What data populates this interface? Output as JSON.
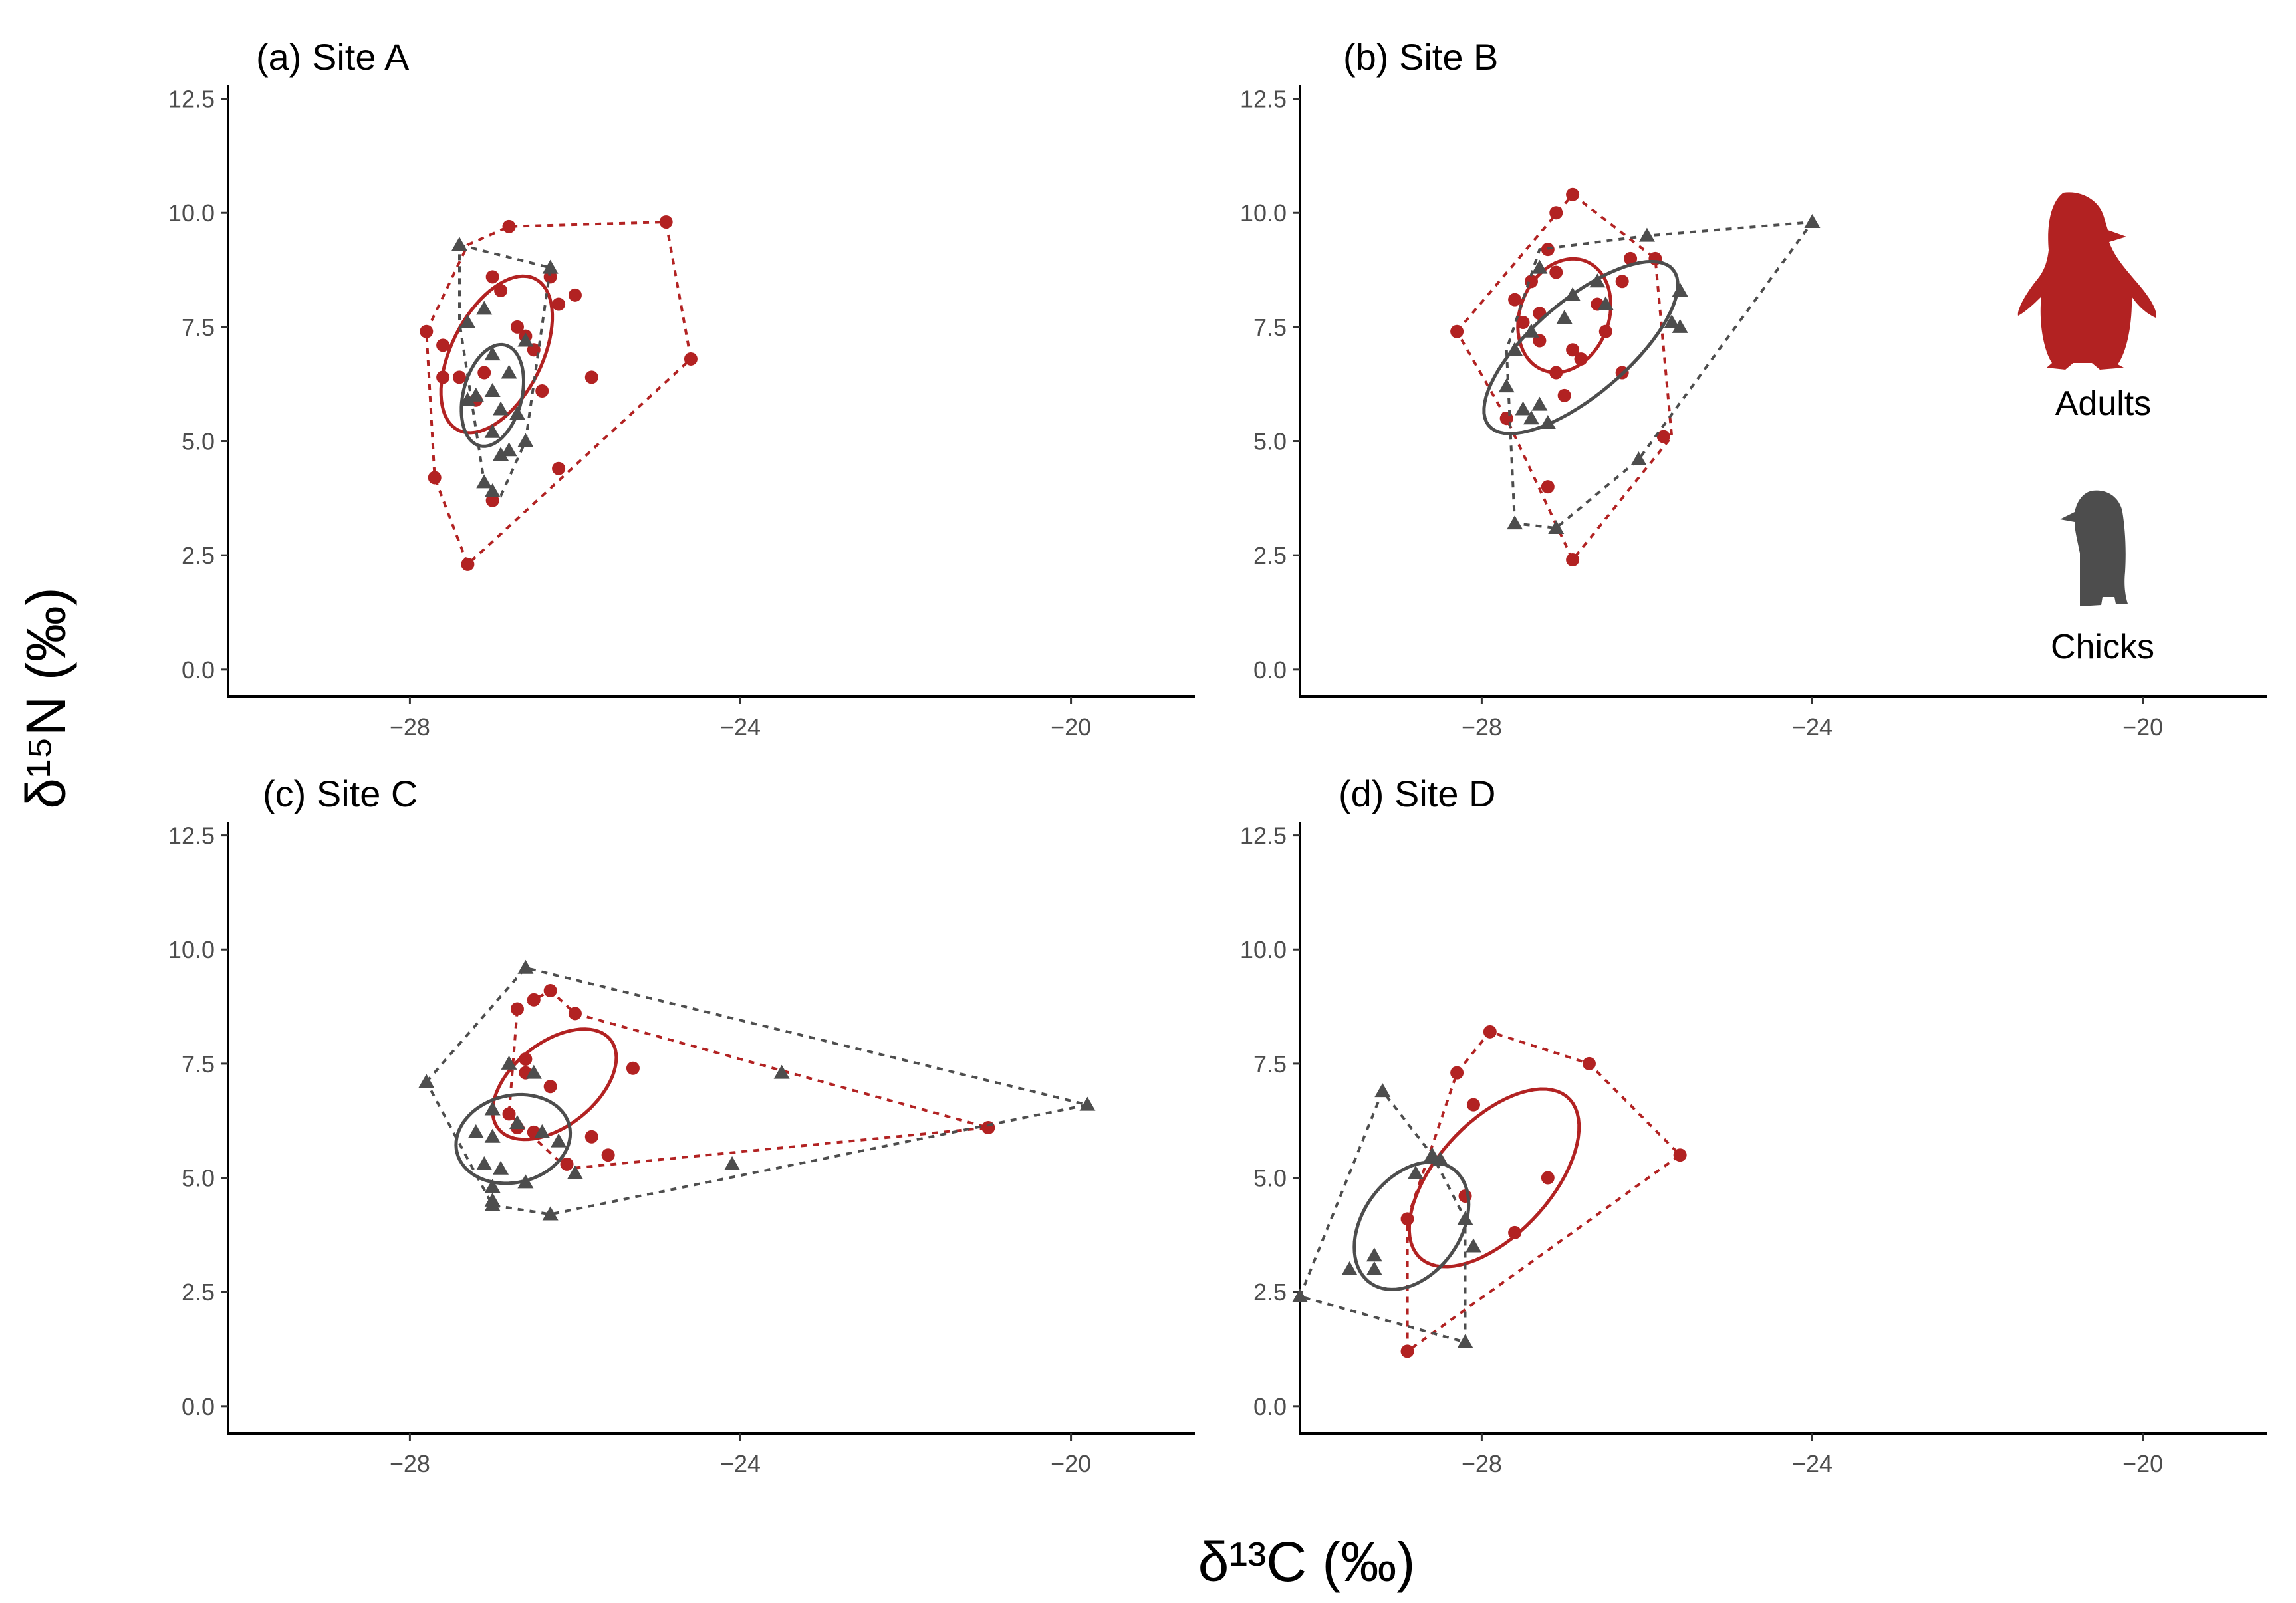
{
  "figure": {
    "x_axis_title": "δ¹³C (‰)",
    "y_axis_title": "δ¹⁵N (‰)"
  },
  "colors": {
    "adults": "#b22222",
    "chicks": "#4d4d4d",
    "axis": "#000000"
  },
  "legend": [
    {
      "label": "Adults",
      "series": "adults",
      "icon": "adult-penguin-icon"
    },
    {
      "label": "Chicks",
      "series": "chicks",
      "icon": "chick-penguin-icon"
    }
  ],
  "chart_data": [
    {
      "id": "a",
      "type": "scatter",
      "title": "(a) Site A",
      "xlim": [
        -30.2,
        -18.5
      ],
      "ylim": [
        -0.6,
        12.8
      ],
      "xticks": [
        -28,
        -24,
        -20
      ],
      "xtick_labels": [
        "−28",
        "−24",
        "−20"
      ],
      "yticks": [
        0,
        2.5,
        5,
        7.5,
        10,
        12.5
      ],
      "ytick_labels": [
        "0.0",
        "2.5",
        "5.0",
        "7.5",
        "10.0",
        "12.5"
      ],
      "series": [
        {
          "name": "Adults",
          "key": "adults",
          "marker": "circle",
          "points": [
            [
              -27.8,
              7.4
            ],
            [
              -27.6,
              7.1
            ],
            [
              -27.6,
              6.4
            ],
            [
              -27.4,
              6.4
            ],
            [
              -27.2,
              5.9
            ],
            [
              -27.1,
              6.5
            ],
            [
              -27.0,
              8.6
            ],
            [
              -26.9,
              8.3
            ],
            [
              -26.7,
              7.5
            ],
            [
              -26.6,
              7.3
            ],
            [
              -26.5,
              7.0
            ],
            [
              -26.4,
              6.1
            ],
            [
              -26.3,
              8.6
            ],
            [
              -26.2,
              8.0
            ],
            [
              -26.0,
              8.2
            ],
            [
              -25.8,
              6.4
            ],
            [
              -26.2,
              4.4
            ],
            [
              -27.7,
              4.2
            ],
            [
              -27.0,
              3.7
            ],
            [
              -26.8,
              9.7
            ],
            [
              -24.9,
              9.8
            ],
            [
              -24.6,
              6.8
            ],
            [
              -27.3,
              2.3
            ]
          ],
          "hull": [
            [
              -27.8,
              7.4
            ],
            [
              -27.3,
              9.3
            ],
            [
              -26.8,
              9.7
            ],
            [
              -24.9,
              9.8
            ],
            [
              -24.6,
              6.8
            ],
            [
              -27.3,
              2.3
            ],
            [
              -27.7,
              4.2
            ]
          ],
          "ellipse": {
            "cx": -26.95,
            "cy": 6.9,
            "rx": 1.75,
            "ry": 0.58,
            "angle": 78
          }
        },
        {
          "name": "Chicks",
          "key": "chicks",
          "marker": "triangle",
          "points": [
            [
              -27.4,
              9.3
            ],
            [
              -26.3,
              8.8
            ],
            [
              -27.3,
              7.6
            ],
            [
              -27.1,
              7.9
            ],
            [
              -27.0,
              6.9
            ],
            [
              -26.8,
              6.5
            ],
            [
              -26.6,
              7.2
            ],
            [
              -27.0,
              6.1
            ],
            [
              -27.2,
              6.0
            ],
            [
              -27.3,
              5.9
            ],
            [
              -26.9,
              5.7
            ],
            [
              -26.7,
              5.6
            ],
            [
              -27.0,
              5.2
            ],
            [
              -26.8,
              4.8
            ],
            [
              -27.1,
              4.1
            ],
            [
              -27.0,
              3.9
            ],
            [
              -26.9,
              4.7
            ],
            [
              -26.6,
              5.0
            ]
          ],
          "hull": [
            [
              -27.4,
              9.3
            ],
            [
              -26.3,
              8.8
            ],
            [
              -26.6,
              5.0
            ],
            [
              -26.9,
              3.8
            ],
            [
              -27.1,
              4.1
            ],
            [
              -27.4,
              7.6
            ]
          ],
          "ellipse": {
            "cx": -27.0,
            "cy": 6.0,
            "rx": 1.12,
            "ry": 0.36,
            "angle": 84
          }
        }
      ]
    },
    {
      "id": "b",
      "type": "scatter",
      "title": "(b) Site B",
      "xlim": [
        -30.2,
        -18.5
      ],
      "ylim": [
        -0.6,
        12.8
      ],
      "xticks": [
        -28,
        -24,
        -20
      ],
      "xtick_labels": [
        "−28",
        "−24",
        "−20"
      ],
      "yticks": [
        0,
        2.5,
        5,
        7.5,
        10,
        12.5
      ],
      "ytick_labels": [
        "0.0",
        "2.5",
        "5.0",
        "7.5",
        "10.0",
        "12.5"
      ],
      "series": [
        {
          "name": "Adults",
          "key": "adults",
          "marker": "circle",
          "points": [
            [
              -28.3,
              7.4
            ],
            [
              -27.6,
              8.1
            ],
            [
              -27.4,
              8.5
            ],
            [
              -27.2,
              9.2
            ],
            [
              -27.3,
              7.8
            ],
            [
              -27.1,
              8.7
            ],
            [
              -26.9,
              10.4
            ],
            [
              -27.1,
              10.0
            ],
            [
              -27.5,
              7.6
            ],
            [
              -27.3,
              7.2
            ],
            [
              -27.1,
              6.5
            ],
            [
              -26.9,
              7.0
            ],
            [
              -26.8,
              6.8
            ],
            [
              -26.6,
              8.0
            ],
            [
              -26.5,
              7.4
            ],
            [
              -26.3,
              8.5
            ],
            [
              -26.2,
              9.0
            ],
            [
              -25.9,
              9.0
            ],
            [
              -26.3,
              6.5
            ],
            [
              -27.0,
              6.0
            ],
            [
              -27.7,
              5.5
            ],
            [
              -25.8,
              5.1
            ],
            [
              -26.9,
              2.4
            ],
            [
              -27.2,
              4.0
            ]
          ],
          "hull": [
            [
              -28.3,
              7.4
            ],
            [
              -26.9,
              10.4
            ],
            [
              -25.9,
              9.0
            ],
            [
              -25.7,
              5.1
            ],
            [
              -26.9,
              2.4
            ],
            [
              -27.7,
              5.5
            ]
          ],
          "ellipse": {
            "cx": -27.0,
            "cy": 7.75,
            "rx": 1.25,
            "ry": 0.55,
            "angle": 84
          }
        },
        {
          "name": "Chicks",
          "key": "chicks",
          "marker": "triangle",
          "points": [
            [
              -24.0,
              9.8
            ],
            [
              -26.0,
              9.5
            ],
            [
              -27.3,
              8.8
            ],
            [
              -26.9,
              8.2
            ],
            [
              -26.6,
              8.5
            ],
            [
              -26.5,
              8.0
            ],
            [
              -27.0,
              7.7
            ],
            [
              -27.4,
              7.4
            ],
            [
              -27.6,
              7.0
            ],
            [
              -27.7,
              6.2
            ],
            [
              -27.5,
              5.7
            ],
            [
              -27.3,
              5.8
            ],
            [
              -27.2,
              5.4
            ],
            [
              -27.4,
              5.5
            ],
            [
              -25.6,
              8.3
            ],
            [
              -25.7,
              7.6
            ],
            [
              -25.6,
              7.5
            ],
            [
              -27.6,
              3.2
            ],
            [
              -27.1,
              3.1
            ],
            [
              -26.1,
              4.6
            ]
          ],
          "hull": [
            [
              -27.6,
              3.2
            ],
            [
              -27.7,
              7.0
            ],
            [
              -27.3,
              9.2
            ],
            [
              -26.0,
              9.5
            ],
            [
              -24.0,
              9.8
            ],
            [
              -26.1,
              4.6
            ],
            [
              -27.1,
              3.1
            ]
          ],
          "ellipse": {
            "cx": -26.8,
            "cy": 7.05,
            "rx": 2.1,
            "ry": 0.72,
            "angle": 62
          }
        }
      ]
    },
    {
      "id": "c",
      "type": "scatter",
      "title": "(c) Site C",
      "xlim": [
        -30.2,
        -18.5
      ],
      "ylim": [
        -0.6,
        12.8
      ],
      "xticks": [
        -28,
        -24,
        -20
      ],
      "xtick_labels": [
        "−28",
        "−24",
        "−20"
      ],
      "yticks": [
        0,
        2.5,
        5,
        7.5,
        10,
        12.5
      ],
      "ytick_labels": [
        "0.0",
        "2.5",
        "5.0",
        "7.5",
        "10.0",
        "12.5"
      ],
      "series": [
        {
          "name": "Adults",
          "key": "adults",
          "marker": "circle",
          "points": [
            [
              -26.7,
              8.7
            ],
            [
              -26.5,
              8.9
            ],
            [
              -26.3,
              9.1
            ],
            [
              -26.0,
              8.6
            ],
            [
              -26.6,
              7.6
            ],
            [
              -26.3,
              7.0
            ],
            [
              -25.3,
              7.4
            ],
            [
              -26.8,
              6.4
            ],
            [
              -26.7,
              6.1
            ],
            [
              -26.5,
              6.0
            ],
            [
              -26.1,
              5.3
            ],
            [
              -25.8,
              5.9
            ],
            [
              -25.6,
              5.5
            ],
            [
              -21.0,
              6.1
            ],
            [
              -26.6,
              7.3
            ]
          ],
          "hull": [
            [
              -26.7,
              8.7
            ],
            [
              -26.3,
              9.1
            ],
            [
              -26.0,
              8.6
            ],
            [
              -21.0,
              6.1
            ],
            [
              -26.1,
              5.2
            ],
            [
              -26.8,
              6.4
            ]
          ],
          "ellipse": {
            "cx": -26.25,
            "cy": 7.05,
            "rx": 1.28,
            "ry": 0.62,
            "angle": 68
          }
        },
        {
          "name": "Chicks",
          "key": "chicks",
          "marker": "triangle",
          "points": [
            [
              -26.6,
              9.6
            ],
            [
              -27.8,
              7.1
            ],
            [
              -26.8,
              7.5
            ],
            [
              -26.5,
              7.3
            ],
            [
              -27.0,
              6.5
            ],
            [
              -27.2,
              6.0
            ],
            [
              -27.0,
              5.9
            ],
            [
              -26.7,
              6.2
            ],
            [
              -26.4,
              6.0
            ],
            [
              -26.2,
              5.8
            ],
            [
              -26.0,
              5.1
            ],
            [
              -27.1,
              5.3
            ],
            [
              -26.9,
              5.2
            ],
            [
              -26.6,
              4.9
            ],
            [
              -27.0,
              4.8
            ],
            [
              -27.0,
              4.5
            ],
            [
              -27.0,
              4.4
            ],
            [
              -26.3,
              4.2
            ],
            [
              -24.1,
              5.3
            ],
            [
              -23.5,
              7.3
            ],
            [
              -19.8,
              6.6
            ]
          ],
          "hull": [
            [
              -27.8,
              7.1
            ],
            [
              -26.6,
              9.6
            ],
            [
              -19.8,
              6.6
            ],
            [
              -26.3,
              4.2
            ],
            [
              -27.0,
              4.4
            ]
          ],
          "ellipse": {
            "cx": -26.75,
            "cy": 5.85,
            "rx": 0.98,
            "ry": 0.68,
            "angle": 80
          }
        }
      ]
    },
    {
      "id": "d",
      "type": "scatter",
      "title": "(d) Site D",
      "xlim": [
        -30.2,
        -18.5
      ],
      "ylim": [
        -0.6,
        12.8
      ],
      "xticks": [
        -28,
        -24,
        -20
      ],
      "xtick_labels": [
        "−28",
        "−24",
        "−20"
      ],
      "yticks": [
        0,
        2.5,
        5,
        7.5,
        10,
        12.5
      ],
      "ytick_labels": [
        "0.0",
        "2.5",
        "5.0",
        "7.5",
        "10.0",
        "12.5"
      ],
      "series": [
        {
          "name": "Adults",
          "key": "adults",
          "marker": "circle",
          "points": [
            [
              -27.9,
              8.2
            ],
            [
              -26.7,
              7.5
            ],
            [
              -25.6,
              5.5
            ],
            [
              -28.3,
              7.3
            ],
            [
              -28.1,
              6.6
            ],
            [
              -28.2,
              4.6
            ],
            [
              -27.2,
              5.0
            ],
            [
              -27.6,
              3.8
            ],
            [
              -28.9,
              4.1
            ],
            [
              -28.9,
              1.2
            ]
          ],
          "hull": [
            [
              -28.3,
              7.3
            ],
            [
              -27.9,
              8.2
            ],
            [
              -26.7,
              7.5
            ],
            [
              -25.6,
              5.5
            ],
            [
              -28.9,
              1.2
            ],
            [
              -28.9,
              4.1
            ]
          ],
          "ellipse": {
            "cx": -27.85,
            "cy": 5.0,
            "rx": 2.05,
            "ry": 0.8,
            "angle": 70
          }
        },
        {
          "name": "Chicks",
          "key": "chicks",
          "marker": "triangle",
          "points": [
            [
              -29.2,
              6.9
            ],
            [
              -28.6,
              5.5
            ],
            [
              -28.5,
              5.4
            ],
            [
              -28.8,
              5.1
            ],
            [
              -28.2,
              4.1
            ],
            [
              -28.1,
              3.5
            ],
            [
              -29.3,
              3.3
            ],
            [
              -29.3,
              3.0
            ],
            [
              -29.6,
              3.0
            ],
            [
              -30.2,
              2.4
            ],
            [
              -28.2,
              1.4
            ]
          ],
          "hull": [
            [
              -30.2,
              2.4
            ],
            [
              -29.2,
              6.9
            ],
            [
              -28.6,
              5.5
            ],
            [
              -28.2,
              4.1
            ],
            [
              -28.2,
              1.4
            ]
          ],
          "ellipse": {
            "cx": -28.85,
            "cy": 3.95,
            "rx": 1.42,
            "ry": 0.64,
            "angle": 78
          }
        }
      ]
    }
  ]
}
